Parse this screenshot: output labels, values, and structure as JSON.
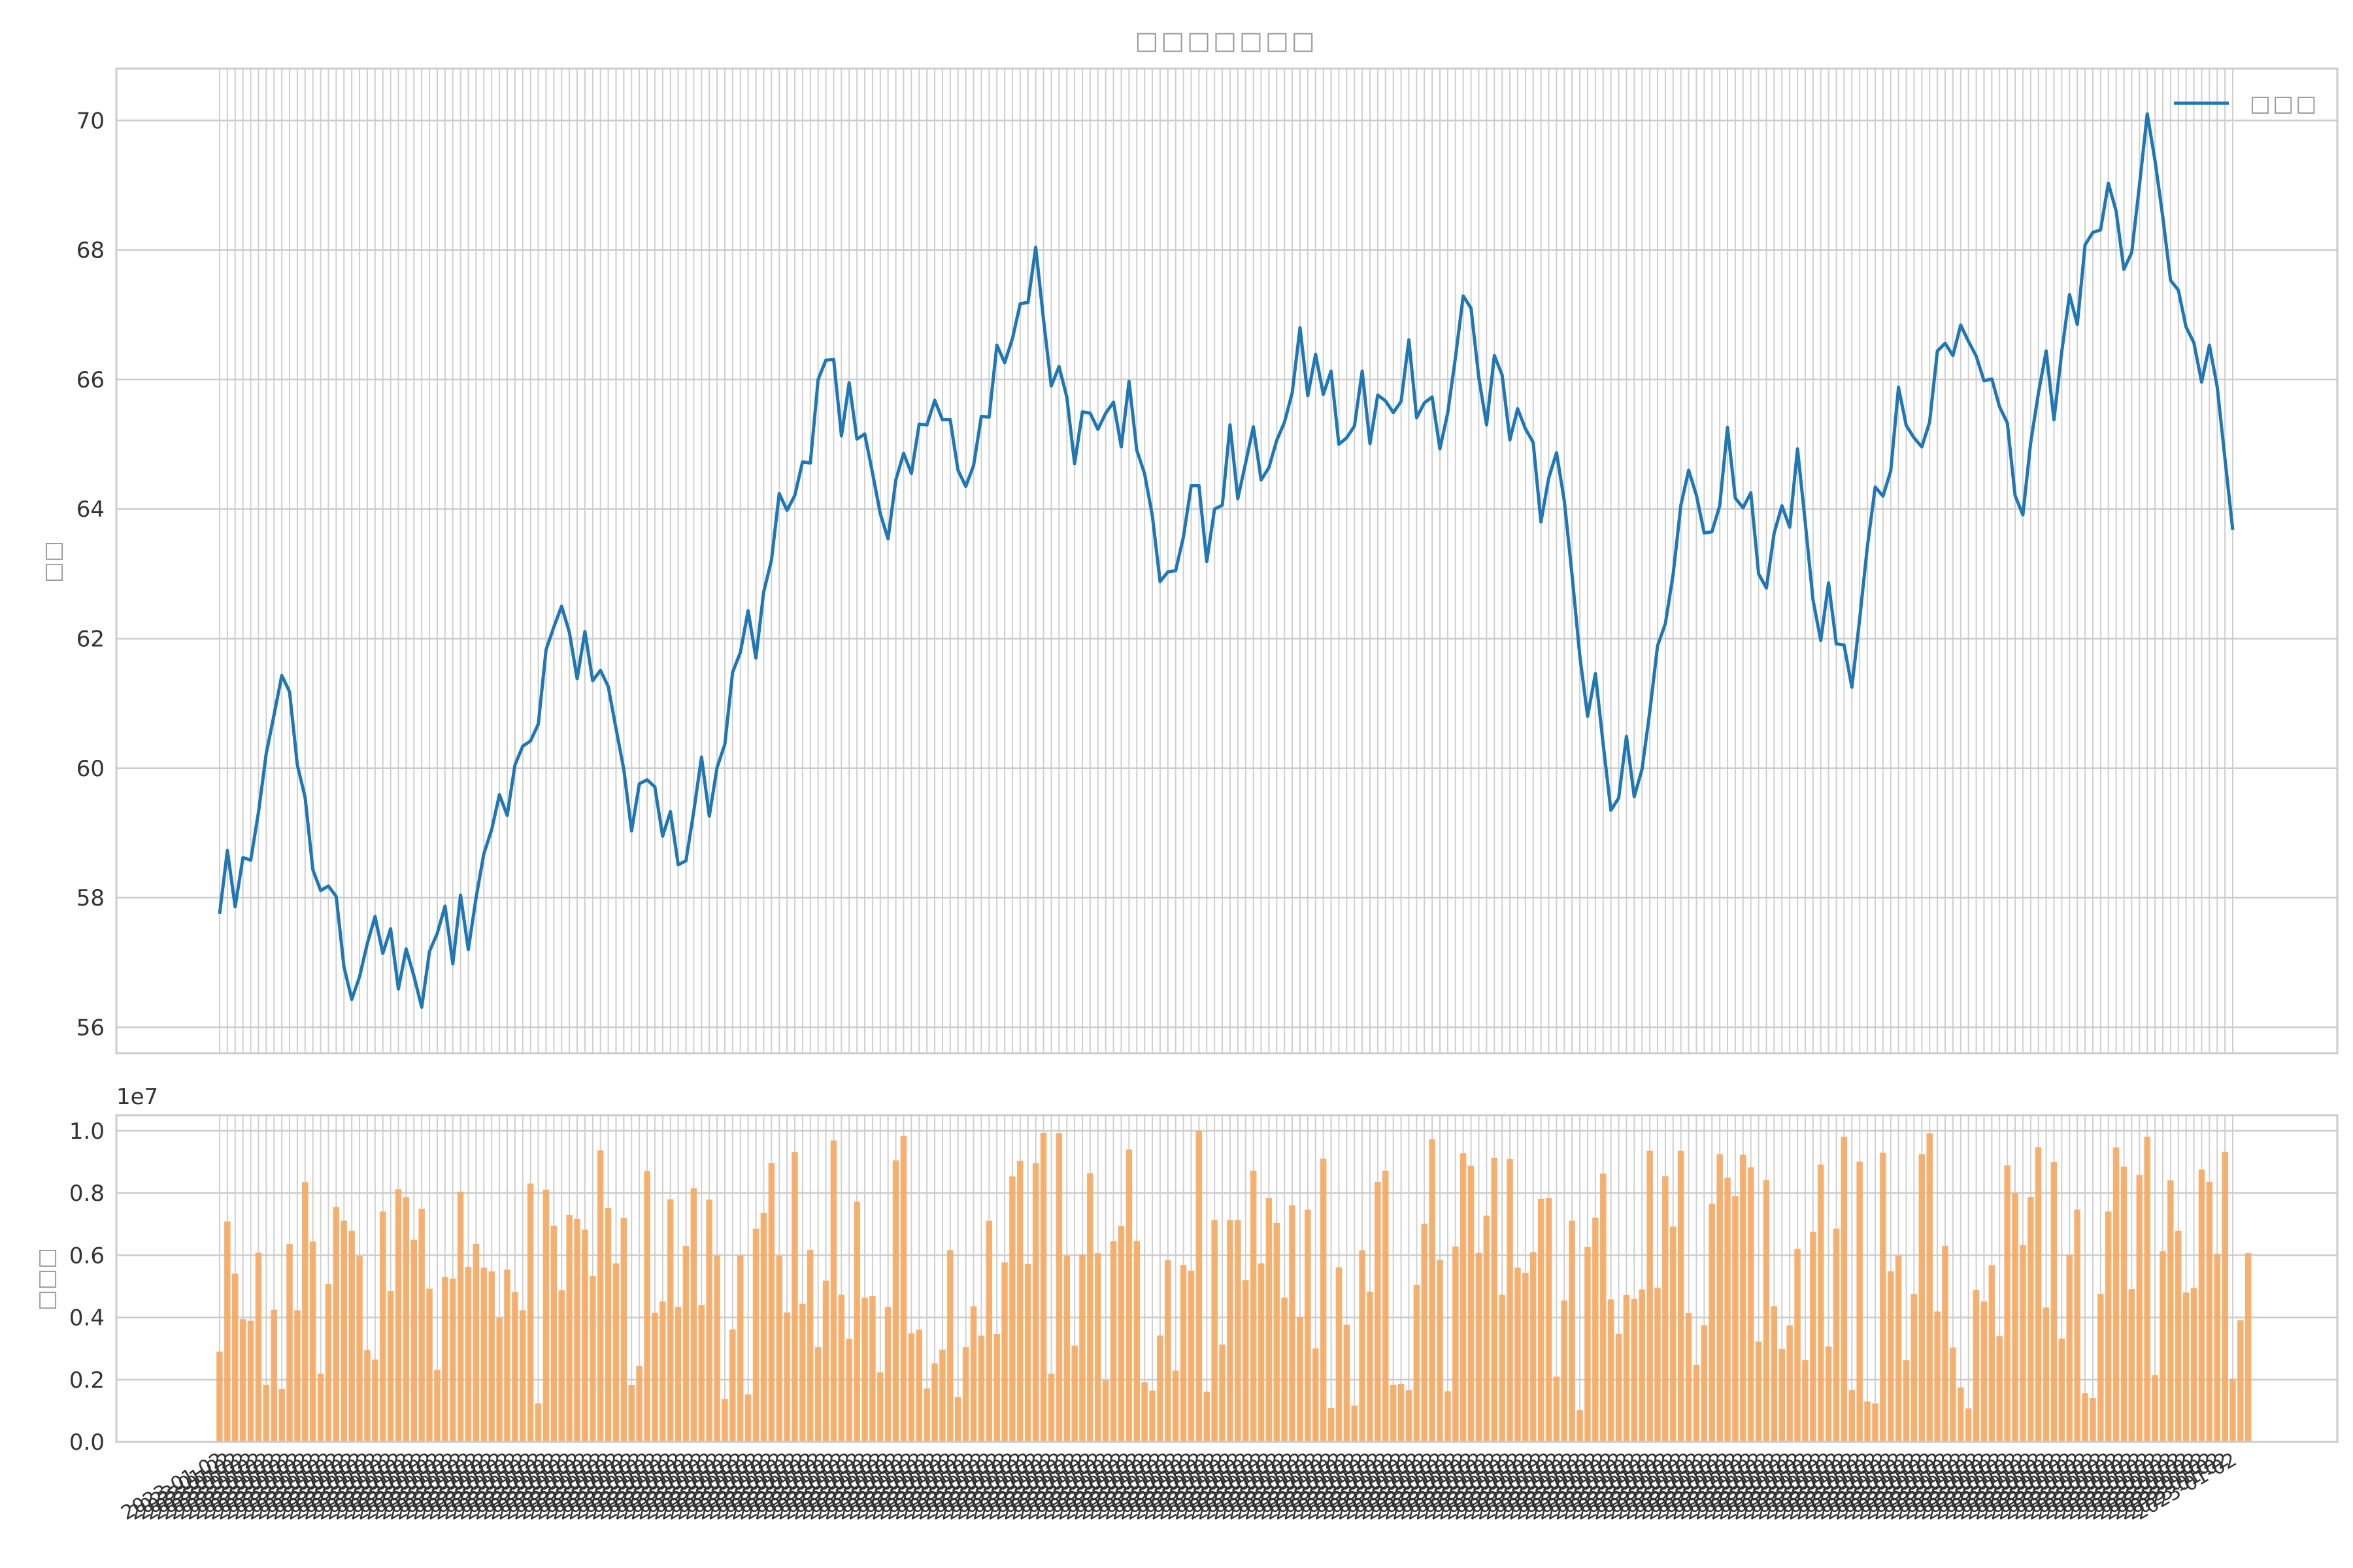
{
  "chart_data": [
    {
      "type": "line",
      "title": "□□□□□□□",
      "xlabel": "",
      "ylabel": "□□",
      "ylim": [
        55.6,
        70.8
      ],
      "yticks": [
        56,
        58,
        60,
        62,
        64,
        66,
        68,
        70
      ],
      "grid": true,
      "legend_placement": "top-right",
      "color": "#1f77b4",
      "series": [
        {
          "name": "□□□",
          "values": [
            57.75,
            58.73,
            57.86,
            58.62,
            58.58,
            59.32,
            60.23,
            60.82,
            61.43,
            61.18,
            60.05,
            59.55,
            58.43,
            58.11,
            58.18,
            58.02,
            56.93,
            56.43,
            56.78,
            57.29,
            57.71,
            57.14,
            57.52,
            56.59,
            57.21,
            56.79,
            56.31,
            57.17,
            57.45,
            57.87,
            56.98,
            58.04,
            57.2,
            58.0,
            58.68,
            59.05,
            59.59,
            59.27,
            60.05,
            60.34,
            60.42,
            60.68,
            61.83,
            62.18,
            62.5,
            62.1,
            61.38,
            62.11,
            61.35,
            61.51,
            61.26,
            60.61,
            59.98,
            59.03,
            59.76,
            59.82,
            59.71,
            58.95,
            59.33,
            58.51,
            58.57,
            59.33,
            60.17,
            59.26,
            60.01,
            60.37,
            61.48,
            61.79,
            62.43,
            61.7,
            62.72,
            63.21,
            64.24,
            63.98,
            64.21,
            64.73,
            64.71,
            66.0,
            66.3,
            66.31,
            65.13,
            65.95,
            65.08,
            65.16,
            64.56,
            63.93,
            63.54,
            64.45,
            64.86,
            64.55,
            65.31,
            65.3,
            65.68,
            65.38,
            65.38,
            64.6,
            64.35,
            64.67,
            65.43,
            65.42,
            66.53,
            66.26,
            66.63,
            67.17,
            67.19,
            68.04,
            66.93,
            65.9,
            66.2,
            65.73,
            64.7,
            65.5,
            65.48,
            65.23,
            65.48,
            65.65,
            64.96,
            65.97,
            64.91,
            64.55,
            63.9,
            62.88,
            63.03,
            63.05,
            63.57,
            64.36,
            64.36,
            63.19,
            64.0,
            64.06,
            65.3,
            64.16,
            64.71,
            65.27,
            64.45,
            64.64,
            65.06,
            65.34,
            65.8,
            66.8,
            65.75,
            66.39,
            65.77,
            66.13,
            65.0,
            65.1,
            65.28,
            66.13,
            65.01,
            65.76,
            65.67,
            65.49,
            65.66,
            66.61,
            65.41,
            65.64,
            65.73,
            64.93,
            65.48,
            66.34,
            67.29,
            67.1,
            66.03,
            65.3,
            66.37,
            66.07,
            65.07,
            65.55,
            65.24,
            65.03,
            63.8,
            64.48,
            64.87,
            64.13,
            62.98,
            61.73,
            60.8,
            61.46,
            60.37,
            59.35,
            59.54,
            60.49,
            59.56,
            59.98,
            60.87,
            61.89,
            62.23,
            62.99,
            64.06,
            64.6,
            64.21,
            63.63,
            63.65,
            64.05,
            65.26,
            64.17,
            64.02,
            64.25,
            63.0,
            62.78,
            63.63,
            64.05,
            63.72,
            64.93,
            63.8,
            62.6,
            61.97,
            62.86,
            61.92,
            61.9,
            61.25,
            62.3,
            63.43,
            64.34,
            64.2,
            64.59,
            65.88,
            65.29,
            65.1,
            64.96,
            65.34,
            66.44,
            66.56,
            66.37,
            66.84,
            66.59,
            66.36,
            65.98,
            66.01,
            65.58,
            65.33,
            64.21,
            63.91,
            65.02,
            65.79,
            66.44,
            65.38,
            66.43,
            67.31,
            66.85,
            68.08,
            68.27,
            68.31,
            69.03,
            68.6,
            67.7,
            67.96,
            69.0,
            70.1,
            69.38,
            68.51,
            67.53,
            67.38,
            66.81,
            66.57,
            65.96,
            66.53,
            65.89,
            64.78,
            63.68
          ]
        }
      ]
    },
    {
      "type": "bar",
      "xlabel": "",
      "ylabel": "□□□",
      "ylim": [
        0,
        10500000
      ],
      "yticks": [
        "0.0",
        "0.2",
        "0.4",
        "0.6",
        "0.8",
        "1.0"
      ],
      "ytick_values": [
        0,
        2000000,
        4000000,
        6000000,
        8000000,
        10000000
      ],
      "scale_label": "1e7",
      "grid": true,
      "color": "#f5a862",
      "x_tick_label_sample": "2023-01-02",
      "values": [
        2902541,
        7085932,
        5406314,
        3944722,
        3893564,
        6079209,
        1831213,
        4249312,
        1700549,
        6363802,
        4233154,
        8352812,
        6440278,
        2193581,
        5084856,
        7551049,
        7109807,
        6784758,
        5968963,
        2953466,
        2650542,
        7405224,
        4848011,
        8122935,
        7865802,
        6497632,
        7491286,
        4925458,
        2317007,
        5299963,
        5249012,
        8040138,
        5627102,
        6366706,
        5600016,
        5478683,
        3982045,
        5538223,
        4818802,
        4231262,
        8305624,
        1235119,
        8109963,
        6953106,
        4873316,
        7286787,
        7166982,
        6824432,
        5335848,
        9372022,
        7518315,
        5740221,
        7201694,
        1827096,
        2435418,
        8706316,
        4150311,
        4510567,
        7797153,
        4336961,
        6297522,
        8152591,
        4398597,
        7786541,
        5985618,
        1379919,
        3615596,
        5986785,
        1525219,
        6849618,
        7351736,
        8962722,
        5975218,
        4163124,
        9317826,
        4438924,
        6176153,
        3043419,
        5181612,
        9692547,
        4734082,
        3313004,
        7721018,
        4632101,
        4682779,
        2238999,
        4336567,
        9044342,
        9832281,
        3492434,
        3606117,
        1714719,
        2526584,
        2967577,
        6168051,
        1441893,
        3042922,
        4358643,
        3412458,
        7106657,
        3465993,
        5767839,
        8534578,
        9034232,
        5716489,
        8960233,
        9933808,
        2189627,
        9923749,
        5982659,
        3096218,
        6021722,
        8637941,
        6064829,
        1979294,
        6452419,
        6941201,
        9397016,
        6458738,
        1919744,
        1647599,
        3418709,
        5839289,
        2293661,
        5687302,
        5503924,
        10000000,
        1614575,
        7132226,
        3126591,
        7138005,
        7134296,
        5204309,
        8718779,
        5740919,
        7835049,
        7035434,
        4637286,
        7605536,
        4009669,
        7462451,
        3004497,
        9104547,
        1091151,
        5611592,
        3767373,
        1164569,
        6163306,
        4829643,
        8358218,
        8717224,
        1832981,
        1869153,
        1659734,
        5044011,
        7011244,
        9729946,
        5849709,
        1630926,
        6281569,
        9275066,
        8875212,
        6076283,
        7274014,
        9134296,
        4729611,
        9093108,
        5600466,
        5431618,
        6097911,
        7813577,
        7837298,
        2100574,
        4545637,
        7108153,
        1027373,
        6263419,
        7208513,
        8625398,
        4583633,
        3470993,
        4725226,
        4600713,
        4902262,
        9355983,
        4952799,
        8541017,
        6917111,
        9352612,
        4140012,
        2480224,
        3748000,
        7653856,
        9250698,
        8491512,
        7898566,
        9230287,
        8830063,
        3222643,
        8414591,
        4361962,
        2983525,
        3746211,
        6201521,
        2628134,
        6749201,
        8913221,
        3068734,
        6853599,
        9811097,
        1669768,
        9007707,
        1298145,
        1232648,
        9292006,
        5483054,
        5986713,
        2624287,
        4747806,
        9250526,
        9920005,
        4192052,
        6302059,
        3034049,
        1751778,
        1077779,
        4886638,
        4512418,
        5682719,
        3397193,
        8891591,
        8002016,
        6329212,
        7871683,
        9468416,
        4316632,
        8993826,
        3322587,
        6012262,
        7465201,
        1568359,
        1406213,
        4748000,
        7405035,
        9463113,
        8847662,
        4911045,
        8581718,
        9812287,
        2142113,
        6127474,
        8408616,
        6787713,
        4799006,
        4945419,
        8751233,
        8359225,
        6046117,
        9327722,
        2024133,
        3907054,
        6067722
      ]
    }
  ]
}
